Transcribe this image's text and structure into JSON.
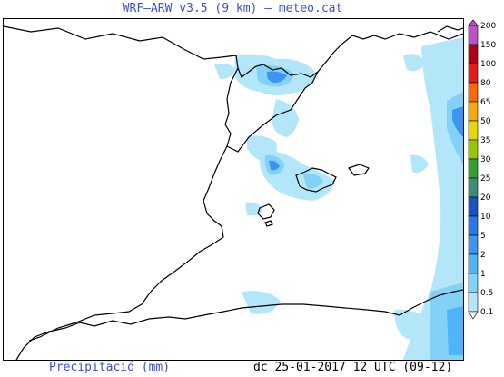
{
  "title": "WRF—ARW v3.5 (9 km) — meteo.cat",
  "footer": {
    "variable": "Precipitació (mm)",
    "validity": "dc 25-01-2017 12 UTC (09-12)"
  },
  "legend": {
    "levels": [
      {
        "label": "200",
        "color": "#c050c8"
      },
      {
        "label": "150",
        "color": "#b40014"
      },
      {
        "label": "100",
        "color": "#e81818"
      },
      {
        "label": "80",
        "color": "#f86a00"
      },
      {
        "label": "65",
        "color": "#f8a800"
      },
      {
        "label": "50",
        "color": "#e8d800"
      },
      {
        "label": "35",
        "color": "#96c800"
      },
      {
        "label": "30",
        "color": "#32a032"
      },
      {
        "label": "25",
        "color": "#3c8c78"
      },
      {
        "label": "20",
        "color": "#1850c8"
      },
      {
        "label": "10",
        "color": "#2878e8"
      },
      {
        "label": "5",
        "color": "#3c96f0"
      },
      {
        "label": "2",
        "color": "#50b4f8"
      },
      {
        "label": "1",
        "color": "#82d2f8"
      },
      {
        "label": "0.5",
        "color": "#b4e6fa"
      },
      {
        "label": "0.1",
        "color": "#ffffff"
      }
    ]
  }
}
